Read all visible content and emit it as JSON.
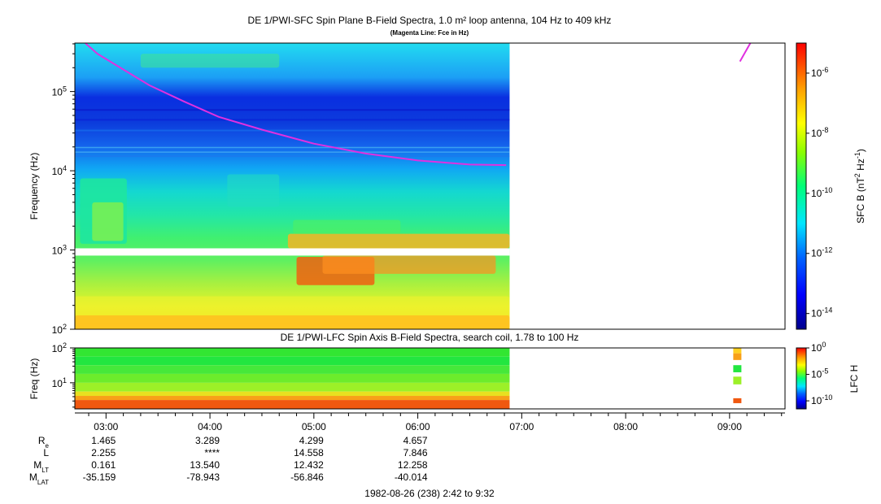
{
  "chart_data": [
    {
      "type": "heatmap",
      "title": "DE 1/PWI-SFC  Spin Plane B-Field Spectra, 1.0 m² loop antenna, 104 Hz to 409 kHz",
      "subtitle": "(Magenta Line: Fce in Hz)",
      "ylabel": "Frequency (Hz)",
      "yscale": "log",
      "ylim": [
        100,
        409000
      ],
      "yticks": [
        {
          "value": 100,
          "base": "10",
          "exp": "2"
        },
        {
          "value": 1000,
          "base": "10",
          "exp": "3"
        },
        {
          "value": 10000,
          "base": "10",
          "exp": "4"
        },
        {
          "value": 100000,
          "base": "10",
          "exp": "5"
        }
      ],
      "data_end_utc": "06:53",
      "data_gap_hz": [
        850,
        1050
      ],
      "fce_line": {
        "color": "#e030e0",
        "points": [
          {
            "t": "02:48",
            "f": 409000
          },
          {
            "t": "02:55",
            "f": 300000
          },
          {
            "t": "03:10",
            "f": 190000
          },
          {
            "t": "03:25",
            "f": 120000
          },
          {
            "t": "03:45",
            "f": 75000
          },
          {
            "t": "04:05",
            "f": 48000
          },
          {
            "t": "04:30",
            "f": 33000
          },
          {
            "t": "05:00",
            "f": 22000
          },
          {
            "t": "05:30",
            "f": 16500
          },
          {
            "t": "06:00",
            "f": 13500
          },
          {
            "t": "06:30",
            "f": 12000
          },
          {
            "t": "06:51",
            "f": 11800
          }
        ],
        "points_late": [
          {
            "t": "09:06",
            "f": 240000
          },
          {
            "t": "09:12",
            "f": 409000
          }
        ]
      },
      "colorbar": {
        "label_base": "SFC B (nT",
        "label_exp1": "2",
        "label_mid": " Hz",
        "label_exp2": "-1",
        "label_end": ")",
        "scale": "log",
        "range": [
          3e-15,
          1e-05
        ],
        "ticks": [
          {
            "value": 1e-06,
            "base": "10",
            "exp": "-6"
          },
          {
            "value": 1e-08,
            "base": "10",
            "exp": "-8"
          },
          {
            "value": 1e-10,
            "base": "10",
            "exp": "-10"
          },
          {
            "value": 1e-12,
            "base": "10",
            "exp": "-12"
          },
          {
            "value": 1e-14,
            "base": "10",
            "exp": "-14"
          }
        ]
      }
    },
    {
      "type": "heatmap",
      "title": "DE 1/PWI-LFC  Spin Axis B-Field Spectra, search coil, 1.78 to 100 Hz",
      "ylabel": "Freq (Hz)",
      "yscale": "log",
      "ylim": [
        1.78,
        100
      ],
      "yticks": [
        {
          "value": 10,
          "base": "10",
          "exp": "1"
        },
        {
          "value": 100,
          "base": "10",
          "exp": "2"
        }
      ],
      "data_end_utc": "06:53",
      "late_samples_utc": "09:04",
      "colorbar": {
        "label": "LFC H",
        "scale": "log",
        "range": [
          3e-12,
          1
        ],
        "ticks": [
          {
            "value": 1,
            "base": "10",
            "exp": "0"
          },
          {
            "value": 1e-05,
            "base": "10",
            "exp": "-5"
          },
          {
            "value": 1e-10,
            "base": "10",
            "exp": "-10"
          }
        ]
      }
    }
  ],
  "time_axis": {
    "start_utc": "02:42",
    "end_utc": "09:32",
    "ticks": [
      "03:00",
      "04:00",
      "05:00",
      "06:00",
      "07:00",
      "08:00",
      "09:00"
    ]
  },
  "ephemeris": {
    "labels": [
      {
        "base": "R",
        "sub": "e"
      },
      {
        "base": "L",
        "sub": ""
      },
      {
        "base": "M",
        "sub": "LT"
      },
      {
        "base": "M",
        "sub": "LAT"
      }
    ],
    "columns": [
      {
        "time": "03:00",
        "values": [
          "1.465",
          "2.255",
          "0.161",
          "-35.159"
        ]
      },
      {
        "time": "04:00",
        "values": [
          "3.289",
          "****",
          "13.540",
          "-78.943"
        ]
      },
      {
        "time": "05:00",
        "values": [
          "4.299",
          "14.558",
          "12.432",
          "-56.846"
        ]
      },
      {
        "time": "06:00",
        "values": [
          "4.657",
          "7.846",
          "12.258",
          "-40.014"
        ]
      }
    ]
  },
  "footer": "1982-08-26 (238) 2:42 to 9:32"
}
